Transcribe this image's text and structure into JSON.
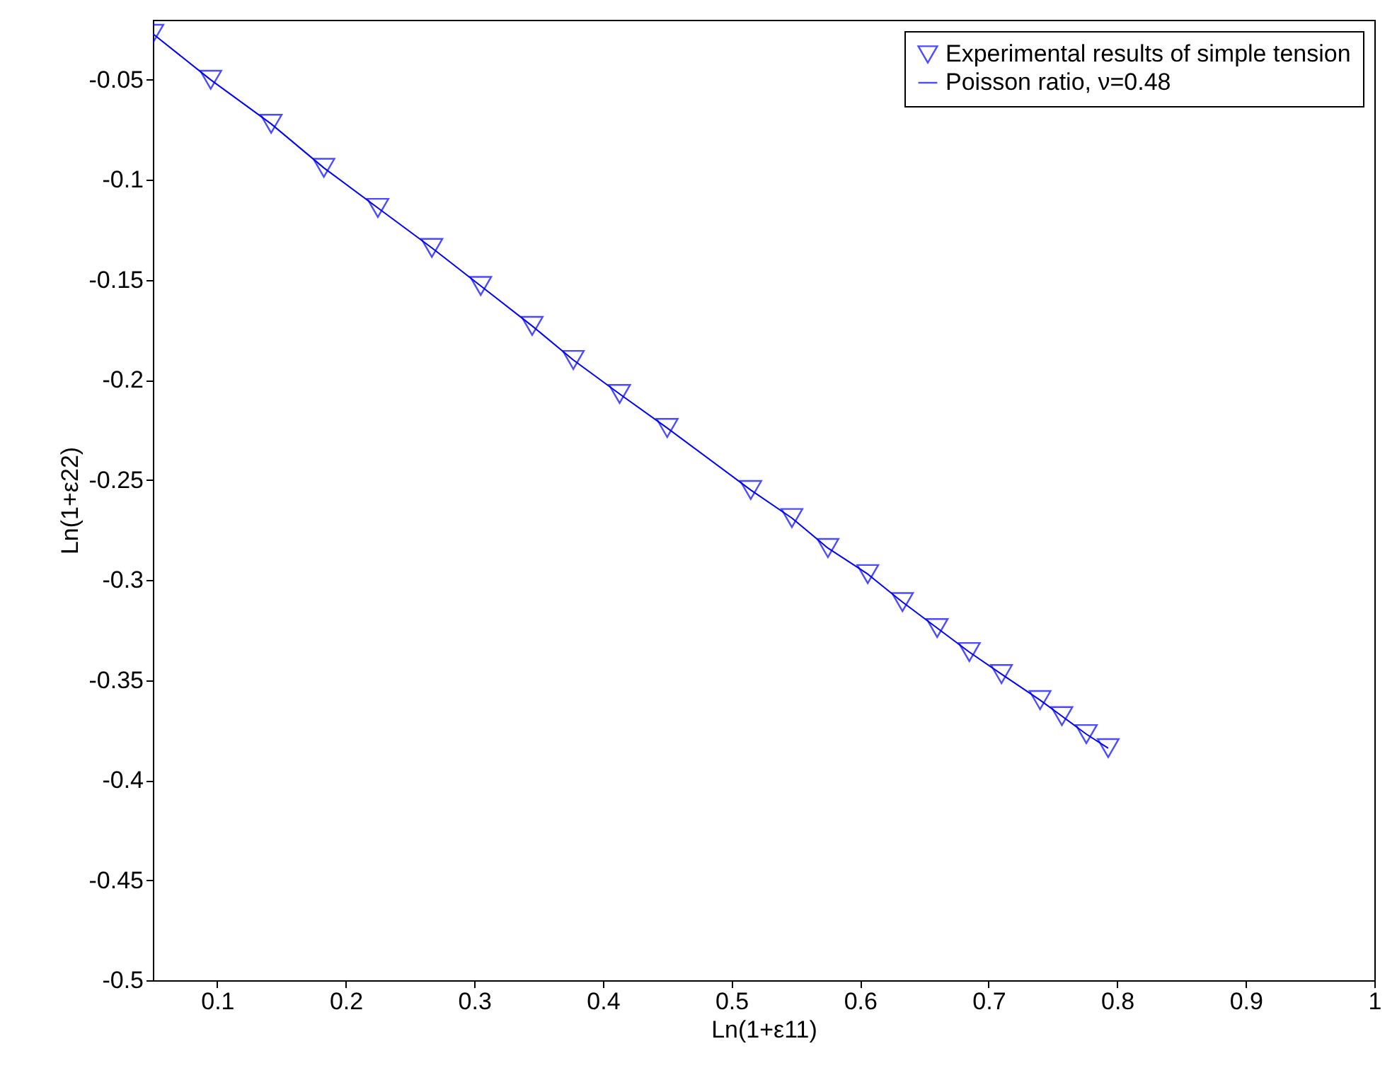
{
  "chart_data": {
    "type": "line",
    "xlabel": "Ln(1+ε11)",
    "ylabel": "Ln(1+ε22)",
    "x": [
      0.05,
      0.095,
      0.142,
      0.183,
      0.225,
      0.267,
      0.305,
      0.345,
      0.377,
      0.413,
      0.45,
      0.515,
      0.547,
      0.575,
      0.606,
      0.633,
      0.66,
      0.685,
      0.71,
      0.74,
      0.757,
      0.776,
      0.793
    ],
    "series": [
      {
        "name": "Experimental results of simple tension",
        "type": "scatter",
        "marker": "triangle",
        "color": "#0000ff",
        "values": [
          -0.027,
          -0.05,
          -0.072,
          -0.094,
          -0.114,
          -0.134,
          -0.153,
          -0.173,
          -0.19,
          -0.207,
          -0.224,
          -0.255,
          -0.269,
          -0.284,
          -0.297,
          -0.311,
          -0.324,
          -0.336,
          -0.347,
          -0.36,
          -0.368,
          -0.377,
          -0.384
        ]
      },
      {
        "name": "Poisson ratio, ν=0.48",
        "marker": "none",
        "color": "#0000ff",
        "values": [
          -0.027,
          -0.05,
          -0.072,
          -0.094,
          -0.114,
          -0.134,
          -0.153,
          -0.173,
          -0.19,
          -0.207,
          -0.224,
          -0.255,
          -0.269,
          -0.284,
          -0.297,
          -0.311,
          -0.324,
          -0.336,
          -0.347,
          -0.36,
          -0.368,
          -0.377,
          -0.384
        ]
      }
    ],
    "xlim": [
      0.05,
      1
    ],
    "xticks": [
      0.1,
      0.2,
      0.3,
      0.4,
      0.5,
      0.6,
      0.7,
      0.8,
      0.9,
      1
    ],
    "ylim": [
      -0.5,
      -0.02
    ],
    "yticks": [
      -0.05,
      -0.1,
      -0.15,
      -0.2,
      -0.25,
      -0.3,
      -0.35,
      -0.4,
      -0.45,
      -0.5
    ],
    "grid": false,
    "legend": "top right"
  }
}
